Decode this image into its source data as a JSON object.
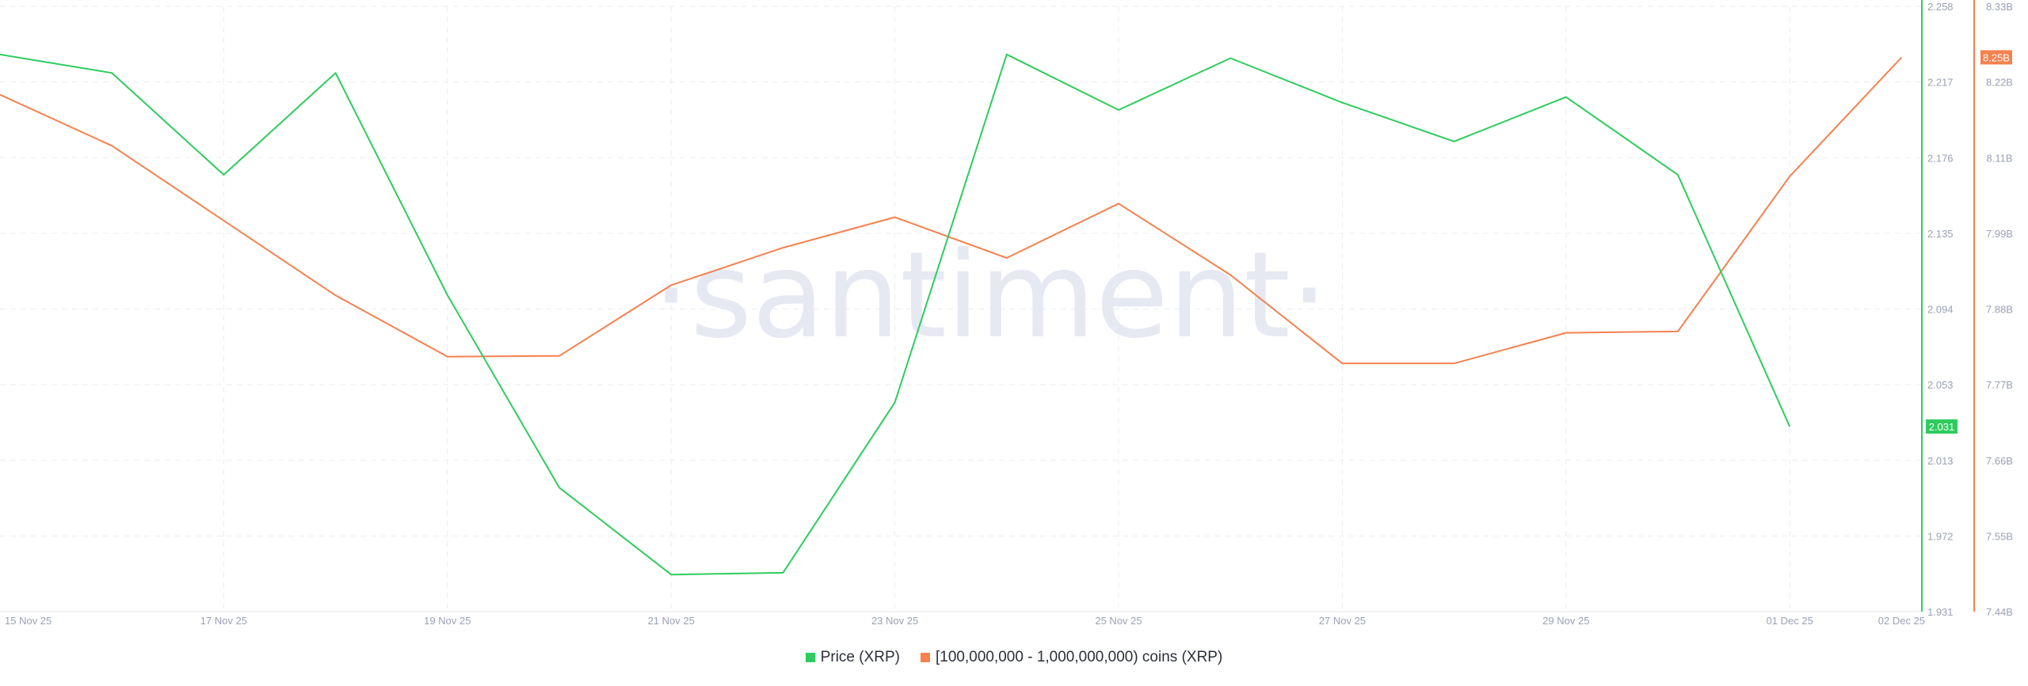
{
  "watermark": "·santiment·",
  "legend": {
    "price_label": "Price (XRP)",
    "holders_label": "[100,000,000 - 1,000,000,000) coins (XRP)"
  },
  "colors": {
    "price": "#2ecc5e",
    "holders": "#f5814f",
    "grid": "#ebedf3",
    "axis_text": "#9aa1b5"
  },
  "chart_data": {
    "type": "line",
    "x": [
      "15 Nov 25",
      "16 Nov 25",
      "17 Nov 25",
      "18 Nov 25",
      "19 Nov 25",
      "20 Nov 25",
      "21 Nov 25",
      "22 Nov 25",
      "23 Nov 25",
      "24 Nov 25",
      "25 Nov 25",
      "26 Nov 25",
      "27 Nov 25",
      "28 Nov 25",
      "29 Nov 25",
      "30 Nov 25",
      "01 Dec 25",
      "02 Dec 25"
    ],
    "x_tick_labels": [
      "15 Nov 25",
      "17 Nov 25",
      "19 Nov 25",
      "21 Nov 25",
      "23 Nov 25",
      "25 Nov 25",
      "27 Nov 25",
      "29 Nov 25",
      "01 Dec 25",
      "02 Dec 25"
    ],
    "series": [
      {
        "name": "Price (XRP)",
        "axis": "left",
        "values": [
          2.232,
          2.222,
          2.167,
          2.222,
          2.102,
          1.998,
          1.951,
          1.952,
          2.044,
          2.232,
          2.202,
          2.23,
          2.206,
          2.185,
          2.209,
          2.167,
          2.031,
          null
        ],
        "last_value_label": "2.031"
      },
      {
        "name": "[100,000,000 - 1,000,000,000) coins (XRP)",
        "axis": "right",
        "values": [
          8.2,
          8.125,
          8.015,
          7.905,
          7.815,
          7.816,
          7.92,
          7.975,
          8.02,
          7.96,
          8.04,
          7.935,
          7.805,
          7.805,
          7.85,
          7.852,
          8.08,
          8.255
        ],
        "last_value_label": "8.25B"
      }
    ],
    "y_left": {
      "min": 1.931,
      "max": 2.258,
      "ticks": [
        "2.258",
        "2.217",
        "2.176",
        "2.135",
        "2.094",
        "2.053",
        "2.013",
        "1.972",
        "1.931"
      ]
    },
    "y_right": {
      "min": 7.44,
      "max": 8.33,
      "ticks": [
        "8.33B",
        "8.22B",
        "8.11B",
        "7.99B",
        "7.88B",
        "7.77B",
        "7.66B",
        "7.55B",
        "7.44B"
      ]
    },
    "grid": true,
    "legend_position": "bottom-center"
  }
}
